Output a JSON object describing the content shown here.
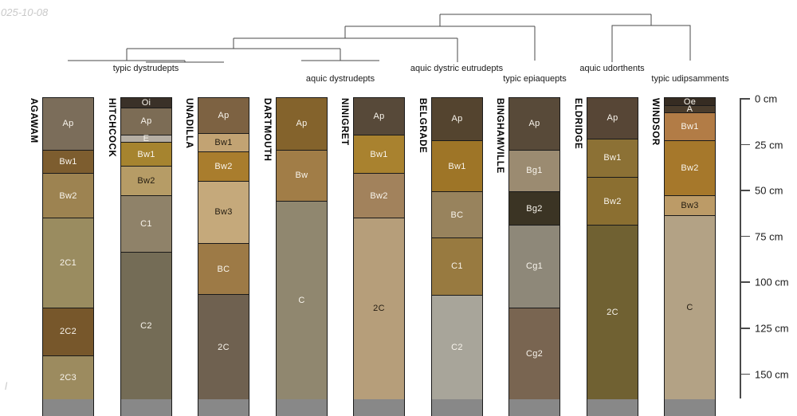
{
  "watermarks": {
    "top_left": "025-10-08",
    "bottom_left": "l"
  },
  "chart_data": {
    "type": "soil-profile-columns-with-dendrogram",
    "title": "",
    "depth_axis": {
      "unit": "cm",
      "tick_labels": [
        "0 cm",
        "25 cm",
        "50 cm",
        "75 cm",
        "100 cm",
        "125 cm",
        "150 cm"
      ],
      "tick_values_cm": [
        0,
        25,
        50,
        75,
        100,
        125,
        150
      ]
    },
    "dendrogram_taxa": [
      {
        "label": "typic dystrudepts",
        "profiles": [
          "AGAWAM",
          "HITCHCOCK",
          "UNADILLA"
        ]
      },
      {
        "label": "aquic dystrudepts",
        "profiles": [
          "DARTMOUTH",
          "NINIGRET"
        ]
      },
      {
        "label": "aquic dystric eutrudepts",
        "profiles": [
          "BELGRADE"
        ]
      },
      {
        "label": "typic epiaquepts",
        "profiles": [
          "BINGHAMVILLE"
        ]
      },
      {
        "label": "aquic udorthents",
        "profiles": [
          "ELDRIDGE"
        ]
      },
      {
        "label": "typic udipsamments",
        "profiles": [
          "WINDSOR"
        ]
      }
    ],
    "profiles": [
      {
        "name": "AGAWAM",
        "horizons": [
          {
            "name": "Ap",
            "top_cm": 0,
            "bottom_cm": 28,
            "color": "#7B6D5A",
            "text": "light"
          },
          {
            "name": "Bw1",
            "top_cm": 28,
            "bottom_cm": 41,
            "color": "#7D5D2F",
            "text": "light"
          },
          {
            "name": "Bw2",
            "top_cm": 41,
            "bottom_cm": 65,
            "color": "#9D8351",
            "text": "light"
          },
          {
            "name": "2C1",
            "top_cm": 65,
            "bottom_cm": 114,
            "color": "#9A8C60",
            "text": "light"
          },
          {
            "name": "2C2",
            "top_cm": 114,
            "bottom_cm": 140,
            "color": "#77572B",
            "text": "light"
          },
          {
            "name": "2C3",
            "top_cm": 140,
            "bottom_cm": 164,
            "color": "#9C8B5F",
            "text": "light"
          }
        ]
      },
      {
        "name": "HITCHCOCK",
        "horizons": [
          {
            "name": "Oi",
            "top_cm": 0,
            "bottom_cm": 5,
            "color": "#3A3128",
            "text": "light"
          },
          {
            "name": "Ap",
            "top_cm": 5,
            "bottom_cm": 20,
            "color": "#7C6C55",
            "text": "light"
          },
          {
            "name": "E",
            "top_cm": 20,
            "bottom_cm": 24,
            "color": "#B5AEA3",
            "text": "light"
          },
          {
            "name": "Bw1",
            "top_cm": 24,
            "bottom_cm": 37,
            "color": "#A6842F",
            "text": "light"
          },
          {
            "name": "Bw2",
            "top_cm": 37,
            "bottom_cm": 53,
            "color": "#B69C66",
            "text": "dark"
          },
          {
            "name": "C1",
            "top_cm": 53,
            "bottom_cm": 84,
            "color": "#8F8269",
            "text": "light"
          },
          {
            "name": "C2",
            "top_cm": 84,
            "bottom_cm": 164,
            "color": "#746C56",
            "text": "light"
          }
        ]
      },
      {
        "name": "UNADILLA",
        "horizons": [
          {
            "name": "Ap",
            "top_cm": 0,
            "bottom_cm": 19,
            "color": "#7D6242",
            "text": "light"
          },
          {
            "name": "Bw1",
            "top_cm": 19,
            "bottom_cm": 29,
            "color": "#C2A373",
            "text": "dark"
          },
          {
            "name": "Bw2",
            "top_cm": 29,
            "bottom_cm": 45,
            "color": "#A97D2D",
            "text": "light"
          },
          {
            "name": "Bw3",
            "top_cm": 45,
            "bottom_cm": 79,
            "color": "#C5A97B",
            "text": "dark"
          },
          {
            "name": "BC",
            "top_cm": 79,
            "bottom_cm": 107,
            "color": "#9D7A46",
            "text": "light"
          },
          {
            "name": "2C",
            "top_cm": 107,
            "bottom_cm": 164,
            "color": "#6F6150",
            "text": "light"
          }
        ]
      },
      {
        "name": "DARTMOUTH",
        "horizons": [
          {
            "name": "Ap",
            "top_cm": 0,
            "bottom_cm": 28,
            "color": "#84632C",
            "text": "light"
          },
          {
            "name": "Bw",
            "top_cm": 28,
            "bottom_cm": 56,
            "color": "#A17D47",
            "text": "light"
          },
          {
            "name": "C",
            "top_cm": 56,
            "bottom_cm": 164,
            "color": "#90876F",
            "text": "light"
          }
        ]
      },
      {
        "name": "NINIGRET",
        "horizons": [
          {
            "name": "Ap",
            "top_cm": 0,
            "bottom_cm": 20,
            "color": "#574939",
            "text": "light"
          },
          {
            "name": "Bw1",
            "top_cm": 20,
            "bottom_cm": 41,
            "color": "#A9822F",
            "text": "light"
          },
          {
            "name": "Bw2",
            "top_cm": 41,
            "bottom_cm": 65,
            "color": "#A2825C",
            "text": "light"
          },
          {
            "name": "2C",
            "top_cm": 65,
            "bottom_cm": 164,
            "color": "#B69E7A",
            "text": "dark"
          }
        ]
      },
      {
        "name": "BELGRADE",
        "horizons": [
          {
            "name": "Ap",
            "top_cm": 0,
            "bottom_cm": 23,
            "color": "#54442F",
            "text": "light"
          },
          {
            "name": "Bw1",
            "top_cm": 23,
            "bottom_cm": 51,
            "color": "#9E7527",
            "text": "light"
          },
          {
            "name": "BC",
            "top_cm": 51,
            "bottom_cm": 76,
            "color": "#98835D",
            "text": "light"
          },
          {
            "name": "C1",
            "top_cm": 76,
            "bottom_cm": 107,
            "color": "#987A40",
            "text": "light"
          },
          {
            "name": "C2",
            "top_cm": 107,
            "bottom_cm": 164,
            "color": "#A8A59A",
            "text": "light"
          }
        ]
      },
      {
        "name": "BINGHAMVILLE",
        "horizons": [
          {
            "name": "Ap",
            "top_cm": 0,
            "bottom_cm": 28,
            "color": "#584A39",
            "text": "light"
          },
          {
            "name": "Bg1",
            "top_cm": 28,
            "bottom_cm": 51,
            "color": "#9B8B71",
            "text": "light"
          },
          {
            "name": "Bg2",
            "top_cm": 51,
            "bottom_cm": 69,
            "color": "#3B3424",
            "text": "light"
          },
          {
            "name": "Cg1",
            "top_cm": 69,
            "bottom_cm": 114,
            "color": "#8E8879",
            "text": "light"
          },
          {
            "name": "Cg2",
            "top_cm": 114,
            "bottom_cm": 164,
            "color": "#796551",
            "text": "light"
          }
        ]
      },
      {
        "name": "ELDRIDGE",
        "horizons": [
          {
            "name": "Ap",
            "top_cm": 0,
            "bottom_cm": 22,
            "color": "#574636",
            "text": "light"
          },
          {
            "name": "Bw1",
            "top_cm": 22,
            "bottom_cm": 43,
            "color": "#8C7135",
            "text": "light"
          },
          {
            "name": "Bw2",
            "top_cm": 43,
            "bottom_cm": 69,
            "color": "#8B6F31",
            "text": "light"
          },
          {
            "name": "2C",
            "top_cm": 69,
            "bottom_cm": 164,
            "color": "#706132",
            "text": "light"
          }
        ]
      },
      {
        "name": "WINDSOR",
        "horizons": [
          {
            "name": "Oe",
            "top_cm": 0,
            "bottom_cm": 4,
            "color": "#362C22",
            "text": "light"
          },
          {
            "name": "A",
            "top_cm": 4,
            "bottom_cm": 8,
            "color": "#4A3C2C",
            "text": "light"
          },
          {
            "name": "Bw1",
            "top_cm": 8,
            "bottom_cm": 23,
            "color": "#B27C46",
            "text": "light"
          },
          {
            "name": "Bw2",
            "top_cm": 23,
            "bottom_cm": 53,
            "color": "#A6782B",
            "text": "light"
          },
          {
            "name": "Bw3",
            "top_cm": 53,
            "bottom_cm": 64,
            "color": "#BC9B67",
            "text": "dark"
          },
          {
            "name": "C",
            "top_cm": 64,
            "bottom_cm": 164,
            "color": "#B3A285",
            "text": "dark"
          }
        ]
      }
    ],
    "layout_hints": {
      "depth_scale_right": true,
      "dendrogram_position": "top",
      "axis_range_cm": [
        0,
        150
      ]
    }
  }
}
